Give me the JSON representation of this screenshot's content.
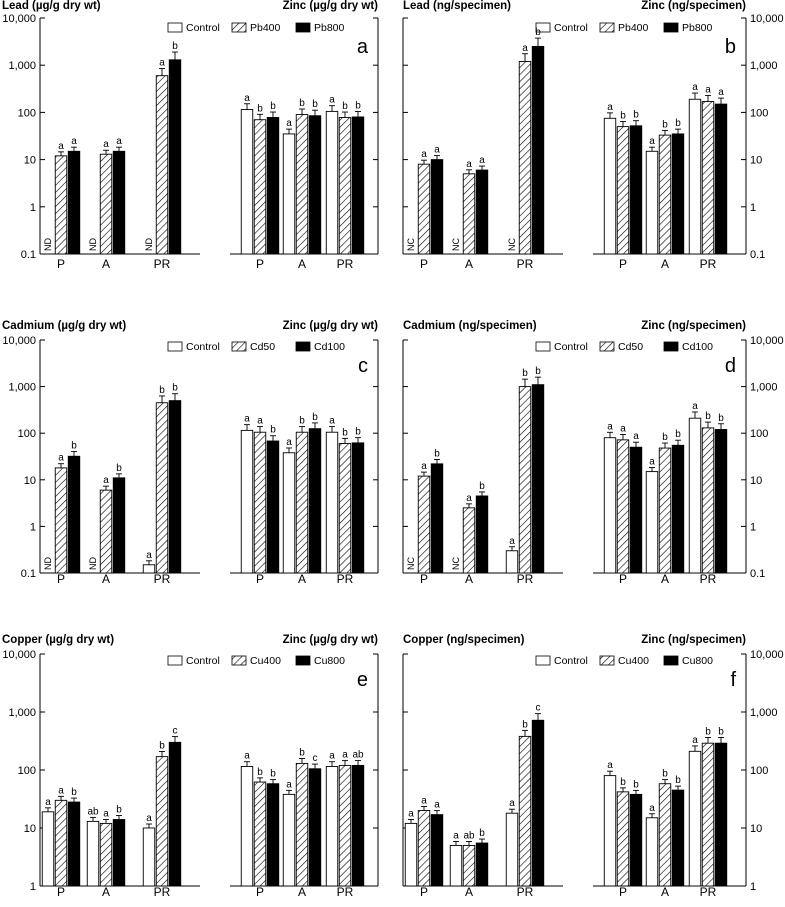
{
  "figure": {
    "y_ticks": [
      "0.1",
      "1",
      "10",
      "100",
      "1,000",
      "10,000"
    ],
    "y_ticks_copper": [
      "1",
      "10",
      "100",
      "1,000",
      "10,000"
    ],
    "groups": [
      "P",
      "A",
      "PR"
    ]
  },
  "colors": {
    "control": "#ffffff",
    "low_dose": "hatched",
    "high_dose": "#000000"
  },
  "chart_data": [
    {
      "panel": "a",
      "type": "bar",
      "log_scale": true,
      "ylim": [
        0.1,
        10000
      ],
      "left_label": "Lead (µg/g dry wt)",
      "right_label": "Zinc (µg/g dry wt)",
      "legend": [
        "Control",
        "Pb400",
        "Pb800"
      ],
      "legend_position": "top-right",
      "lead": {
        "categories": [
          "P",
          "A",
          "PR"
        ],
        "series": [
          {
            "name": "Control",
            "values": [
              null,
              null,
              null
            ],
            "letters": [
              "",
              "",
              ""
            ],
            "notes": [
              "ND",
              "ND",
              "ND"
            ]
          },
          {
            "name": "Pb400",
            "values": [
              12,
              13,
              600
            ],
            "letters": [
              "a",
              "a",
              "a"
            ]
          },
          {
            "name": "Pb800",
            "values": [
              15,
              15,
              1300
            ],
            "letters": [
              "a",
              "a",
              "b"
            ]
          }
        ]
      },
      "zinc": {
        "categories": [
          "P",
          "A",
          "PR"
        ],
        "series": [
          {
            "name": "Control",
            "values": [
              115,
              35,
              105
            ],
            "letters": [
              "a",
              "a",
              "a"
            ]
          },
          {
            "name": "Pb400",
            "values": [
              70,
              90,
              78
            ],
            "letters": [
              "b",
              "b",
              "b"
            ]
          },
          {
            "name": "Pb800",
            "values": [
              78,
              85,
              80
            ],
            "letters": [
              "b",
              "b",
              "b"
            ]
          }
        ]
      }
    },
    {
      "panel": "b",
      "type": "bar",
      "log_scale": true,
      "ylim": [
        0.1,
        10000
      ],
      "left_label": "Lead (ng/specimen)",
      "right_label": "Zinc (ng/specimen)",
      "legend": [
        "Control",
        "Pb400",
        "Pb800"
      ],
      "legend_position": "top-right",
      "lead": {
        "categories": [
          "P",
          "A",
          "PR"
        ],
        "series": [
          {
            "name": "Control",
            "values": [
              null,
              null,
              null
            ],
            "letters": [
              "",
              "",
              ""
            ],
            "notes": [
              "NC",
              "NC",
              "NC"
            ]
          },
          {
            "name": "Pb400",
            "values": [
              8,
              5,
              1200
            ],
            "letters": [
              "a",
              "a",
              "a"
            ]
          },
          {
            "name": "Pb800",
            "values": [
              10,
              6,
              2500
            ],
            "letters": [
              "a",
              "a",
              "b"
            ]
          }
        ]
      },
      "zinc": {
        "categories": [
          "P",
          "A",
          "PR"
        ],
        "series": [
          {
            "name": "Control",
            "values": [
              75,
              15,
              190
            ],
            "letters": [
              "a",
              "a",
              "a"
            ]
          },
          {
            "name": "Pb400",
            "values": [
              50,
              33,
              170
            ],
            "letters": [
              "b",
              "b",
              "a"
            ]
          },
          {
            "name": "Pb800",
            "values": [
              52,
              35,
              150
            ],
            "letters": [
              "b",
              "b",
              "a"
            ]
          }
        ]
      }
    },
    {
      "panel": "c",
      "type": "bar",
      "log_scale": true,
      "ylim": [
        0.1,
        10000
      ],
      "left_label": "Cadmium (µg/g dry wt)",
      "right_label": "Zinc (µg/g dry wt)",
      "legend": [
        "Control",
        "Cd50",
        "Cd100"
      ],
      "legend_position": "top-right",
      "lead": {
        "categories": [
          "P",
          "A",
          "PR"
        ],
        "series": [
          {
            "name": "Control",
            "values": [
              null,
              null,
              0.15
            ],
            "letters": [
              "",
              "",
              "a"
            ],
            "notes": [
              "ND",
              "ND",
              ""
            ]
          },
          {
            "name": "Cd50",
            "values": [
              18,
              6,
              450
            ],
            "letters": [
              "a",
              "a",
              "b"
            ]
          },
          {
            "name": "Cd100",
            "values": [
              32,
              11,
              500
            ],
            "letters": [
              "b",
              "b",
              "b"
            ]
          }
        ]
      },
      "zinc": {
        "categories": [
          "P",
          "A",
          "PR"
        ],
        "series": [
          {
            "name": "Control",
            "values": [
              115,
              38,
              105
            ],
            "letters": [
              "a",
              "a",
              "a"
            ]
          },
          {
            "name": "Cd50",
            "values": [
              105,
              105,
              60
            ],
            "letters": [
              "a",
              "b",
              "b"
            ]
          },
          {
            "name": "Cd100",
            "values": [
              68,
              125,
              62
            ],
            "letters": [
              "b",
              "b",
              "b"
            ]
          }
        ]
      }
    },
    {
      "panel": "d",
      "type": "bar",
      "log_scale": true,
      "ylim": [
        0.1,
        10000
      ],
      "left_label": "Cadmium (ng/specimen)",
      "right_label": "Zinc (ng/specimen)",
      "legend": [
        "Control",
        "Cd50",
        "Cd100"
      ],
      "legend_position": "top-right",
      "lead": {
        "categories": [
          "P",
          "A",
          "PR"
        ],
        "series": [
          {
            "name": "Control",
            "values": [
              null,
              null,
              0.3
            ],
            "letters": [
              "",
              "",
              "a"
            ],
            "notes": [
              "NC",
              "NC",
              ""
            ]
          },
          {
            "name": "Cd50",
            "values": [
              12,
              2.5,
              1000
            ],
            "letters": [
              "a",
              "a",
              "b"
            ]
          },
          {
            "name": "Cd100",
            "values": [
              22,
              4.5,
              1100
            ],
            "letters": [
              "b",
              "b",
              "b"
            ]
          }
        ]
      },
      "zinc": {
        "categories": [
          "P",
          "A",
          "PR"
        ],
        "series": [
          {
            "name": "Control",
            "values": [
              80,
              15,
              210
            ],
            "letters": [
              "a",
              "a",
              "a"
            ]
          },
          {
            "name": "Cd50",
            "values": [
              72,
              48,
              130
            ],
            "letters": [
              "a",
              "b",
              "b"
            ]
          },
          {
            "name": "Cd100",
            "values": [
              50,
              55,
              120
            ],
            "letters": [
              "a",
              "b",
              "b"
            ]
          }
        ]
      }
    },
    {
      "panel": "e",
      "type": "bar",
      "log_scale": true,
      "ylim": [
        1,
        10000
      ],
      "left_label": "Copper (µg/g dry wt)",
      "right_label": "Zinc (µg/g dry wt)",
      "legend": [
        "Control",
        "Cu400",
        "Cu800"
      ],
      "legend_position": "top-right",
      "lead": {
        "categories": [
          "P",
          "A",
          "PR"
        ],
        "series": [
          {
            "name": "Control",
            "values": [
              19,
              13,
              10
            ],
            "letters": [
              "a",
              "ab",
              "a"
            ]
          },
          {
            "name": "Cu400",
            "values": [
              30,
              12,
              170
            ],
            "letters": [
              "a",
              "a",
              "b"
            ]
          },
          {
            "name": "Cu800",
            "values": [
              28,
              14,
              300
            ],
            "letters": [
              "b",
              "b",
              "c"
            ]
          }
        ]
      },
      "zinc": {
        "categories": [
          "P",
          "A",
          "PR"
        ],
        "series": [
          {
            "name": "Control",
            "values": [
              115,
              38,
              115
            ],
            "letters": [
              "a",
              "a",
              "a"
            ]
          },
          {
            "name": "Cu400",
            "values": [
              62,
              130,
              120
            ],
            "letters": [
              "b",
              "b",
              "a"
            ]
          },
          {
            "name": "Cu800",
            "values": [
              58,
              105,
              120
            ],
            "letters": [
              "b",
              "c",
              "ab"
            ]
          }
        ]
      }
    },
    {
      "panel": "f",
      "type": "bar",
      "log_scale": true,
      "ylim": [
        1,
        10000
      ],
      "left_label": "Copper (ng/specimen)",
      "right_label": "Zinc (ng/specimen)",
      "legend": [
        "Control",
        "Cu400",
        "Cu800"
      ],
      "legend_position": "top-right",
      "lead": {
        "categories": [
          "P",
          "A",
          "PR"
        ],
        "series": [
          {
            "name": "Control",
            "values": [
              12,
              5,
              18
            ],
            "letters": [
              "a",
              "a",
              "a"
            ]
          },
          {
            "name": "Cu400",
            "values": [
              20,
              5,
              380
            ],
            "letters": [
              "a",
              "ab",
              "b"
            ]
          },
          {
            "name": "Cu800",
            "values": [
              17,
              5.5,
              720
            ],
            "letters": [
              "a",
              "b",
              "c"
            ]
          }
        ]
      },
      "zinc": {
        "categories": [
          "P",
          "A",
          "PR"
        ],
        "series": [
          {
            "name": "Control",
            "values": [
              80,
              15,
              210
            ],
            "letters": [
              "a",
              "a",
              "a"
            ]
          },
          {
            "name": "Cu400",
            "values": [
              42,
              58,
              290
            ],
            "letters": [
              "b",
              "b",
              "b"
            ]
          },
          {
            "name": "Cu800",
            "values": [
              38,
              45,
              290
            ],
            "letters": [
              "b",
              "b",
              "b"
            ]
          }
        ]
      }
    }
  ]
}
